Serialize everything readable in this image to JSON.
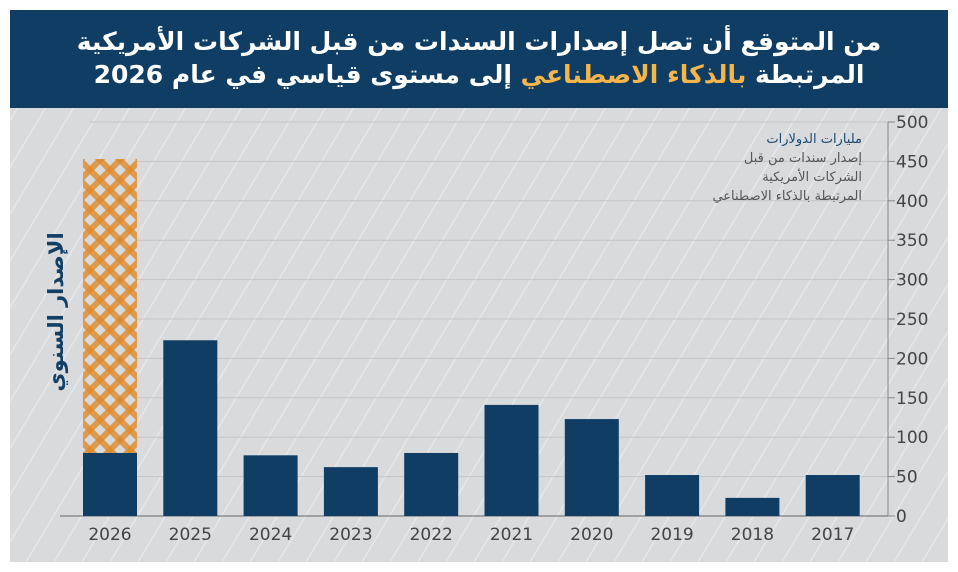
{
  "header": {
    "title_line1": "من المتوقع أن تصل إصدارات السندات من قبل الشركات الأمريكية",
    "title_line2_prefix": "المرتبطة ",
    "title_line2_highlight": "بالذكاء الاصطناعي",
    "title_line2_suffix": " إلى مستوى قياسي في عام 2026"
  },
  "colors": {
    "bar": "#0f3d63",
    "forecast": "#e08a2a",
    "background": "#d9dadc",
    "highlight": "#f5b54a"
  },
  "chart_data": {
    "type": "bar",
    "title": "من المتوقع أن تصل إصدارات السندات من قبل الشركات الأمريكية المرتبطة بالذكاء الاصطناعي إلى مستوى قياسي في عام 2026",
    "unit_label": "مليارات الدولارات",
    "legend_lines": [
      "إصدار سندات من قبل",
      "الشركات الأمريكية",
      "المرتبطة بالذكاء الاصطناعي"
    ],
    "ylabel": "الإصدار السنوي",
    "categories": [
      "2026",
      "2025",
      "2024",
      "2023",
      "2022",
      "2021",
      "2020",
      "2019",
      "2018",
      "2017"
    ],
    "values": [
      80,
      223,
      77,
      62,
      80,
      141,
      123,
      52,
      23,
      52
    ],
    "forecast": {
      "category": "2026",
      "value": 453
    },
    "ylim": [
      0,
      500
    ],
    "yticks": [
      0,
      50,
      100,
      150,
      200,
      250,
      300,
      350,
      400,
      450,
      500
    ],
    "grid": true,
    "yaxis_position": "right"
  }
}
